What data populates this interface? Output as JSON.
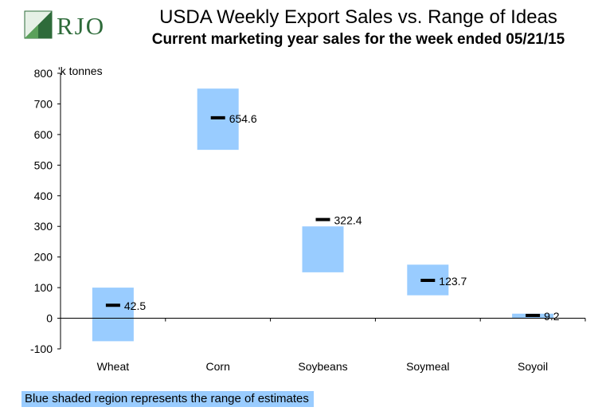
{
  "logo": {
    "text": "RJO",
    "icon": "rjo-logo-icon"
  },
  "chart_data": {
    "type": "range-bar",
    "title": "USDA Weekly Export Sales vs. Range of Ideas",
    "subtitle": "Current marketing year sales for the week ended 05/21/15",
    "unit_label": "'k tonnes",
    "ylim": [
      -100,
      800
    ],
    "yticks": [
      -100,
      0,
      100,
      200,
      300,
      400,
      500,
      600,
      700,
      800
    ],
    "grid": false,
    "categories": [
      "Wheat",
      "Corn",
      "Soybeans",
      "Soymeal",
      "Soyoil"
    ],
    "range_low": [
      -75,
      550,
      150,
      75,
      0
    ],
    "range_high": [
      100,
      750,
      300,
      175,
      15
    ],
    "actual": [
      42.5,
      654.6,
      322.4,
      123.7,
      9.2
    ],
    "actual_labels": [
      "42.5",
      "654.6",
      "322.4",
      "123.7",
      "9.2"
    ]
  },
  "colors": {
    "range": "#99ccff",
    "marker": "#000000"
  },
  "footer": "Blue shaded region represents the range of estimates"
}
